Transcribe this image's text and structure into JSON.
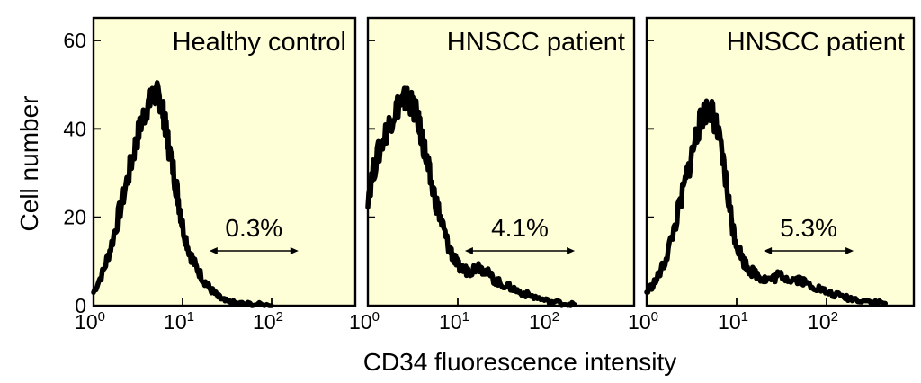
{
  "chart_data": [
    {
      "type": "area",
      "title": "Healthy control",
      "xscale": "log",
      "xlim": [
        1,
        1000
      ],
      "ylim": [
        0,
        65
      ],
      "xticklabels": [
        {
          "base": "10",
          "exp": "0"
        },
        {
          "base": "10",
          "exp": "1"
        },
        {
          "base": "10",
          "exp": "2"
        }
      ],
      "yticklabels": [
        "0",
        "20",
        "40",
        "60"
      ],
      "gate": {
        "label": "0.3%",
        "from": 20,
        "to": 200
      },
      "series": [
        {
          "x": [
            1.0,
            1.3,
            1.6,
            2.0,
            2.5,
            3.0,
            3.5,
            4.0,
            4.5,
            5.0,
            5.5,
            6.0,
            6.5,
            7.0,
            8.0,
            9.0,
            10,
            12,
            14,
            17,
            20,
            25,
            30,
            40,
            60,
            100
          ],
          "y": [
            3,
            8,
            14,
            22,
            30,
            37,
            42,
            45,
            47,
            48,
            47,
            44,
            40,
            36,
            30,
            24,
            18,
            12,
            9,
            6,
            4,
            2,
            1,
            0.5,
            0.3,
            0
          ]
        }
      ]
    },
    {
      "type": "area",
      "title": "HNSCC patient",
      "xscale": "log",
      "xlim": [
        1,
        1000
      ],
      "ylim": [
        0,
        65
      ],
      "xticklabels": [
        {
          "base": "10",
          "exp": "0"
        },
        {
          "base": "10",
          "exp": "1"
        },
        {
          "base": "10",
          "exp": "2"
        }
      ],
      "yticklabels": [],
      "gate": {
        "label": "4.1%",
        "from": 12,
        "to": 200
      },
      "series": [
        {
          "x": [
            1.0,
            1.2,
            1.5,
            1.8,
            2.1,
            2.4,
            2.7,
            3.0,
            3.5,
            4.0,
            4.5,
            5.0,
            6.0,
            7.0,
            8.0,
            9.0,
            10,
            12,
            14,
            17,
            20,
            25,
            30,
            40,
            50,
            70,
            100,
            150,
            200
          ],
          "y": [
            25,
            32,
            38,
            42,
            45,
            46,
            47,
            46,
            43,
            38,
            33,
            28,
            22,
            17,
            13,
            11,
            9,
            8,
            8,
            9,
            8,
            6,
            5,
            4,
            3,
            2,
            1,
            0.5,
            0.2
          ]
        }
      ]
    },
    {
      "type": "area",
      "title": "HNSCC patient",
      "xscale": "log",
      "xlim": [
        1,
        1000
      ],
      "ylim": [
        0,
        65
      ],
      "xticklabels": [
        {
          "base": "10",
          "exp": "0"
        },
        {
          "base": "10",
          "exp": "1"
        },
        {
          "base": "10",
          "exp": "2"
        }
      ],
      "yticklabels": [],
      "gate": {
        "label": "5.3%",
        "from": 20,
        "to": 200
      },
      "series": [
        {
          "x": [
            1.0,
            1.3,
            1.6,
            2.0,
            2.5,
            3.0,
            3.5,
            4.0,
            4.5,
            5.0,
            5.5,
            6.0,
            7.0,
            8.0,
            9.0,
            10,
            12,
            14,
            17,
            20,
            25,
            30,
            40,
            50,
            60,
            80,
            100,
            150,
            200,
            300,
            450
          ],
          "y": [
            3,
            6,
            10,
            17,
            25,
            32,
            38,
            42,
            44,
            45,
            43,
            40,
            33,
            25,
            18,
            14,
            10,
            8,
            7,
            6,
            6,
            7,
            6,
            6,
            5,
            4,
            3,
            2,
            1.5,
            1,
            0.5
          ]
        }
      ]
    }
  ],
  "ylabel": "Cell number",
  "xlabel": "CD34 fluorescence intensity"
}
